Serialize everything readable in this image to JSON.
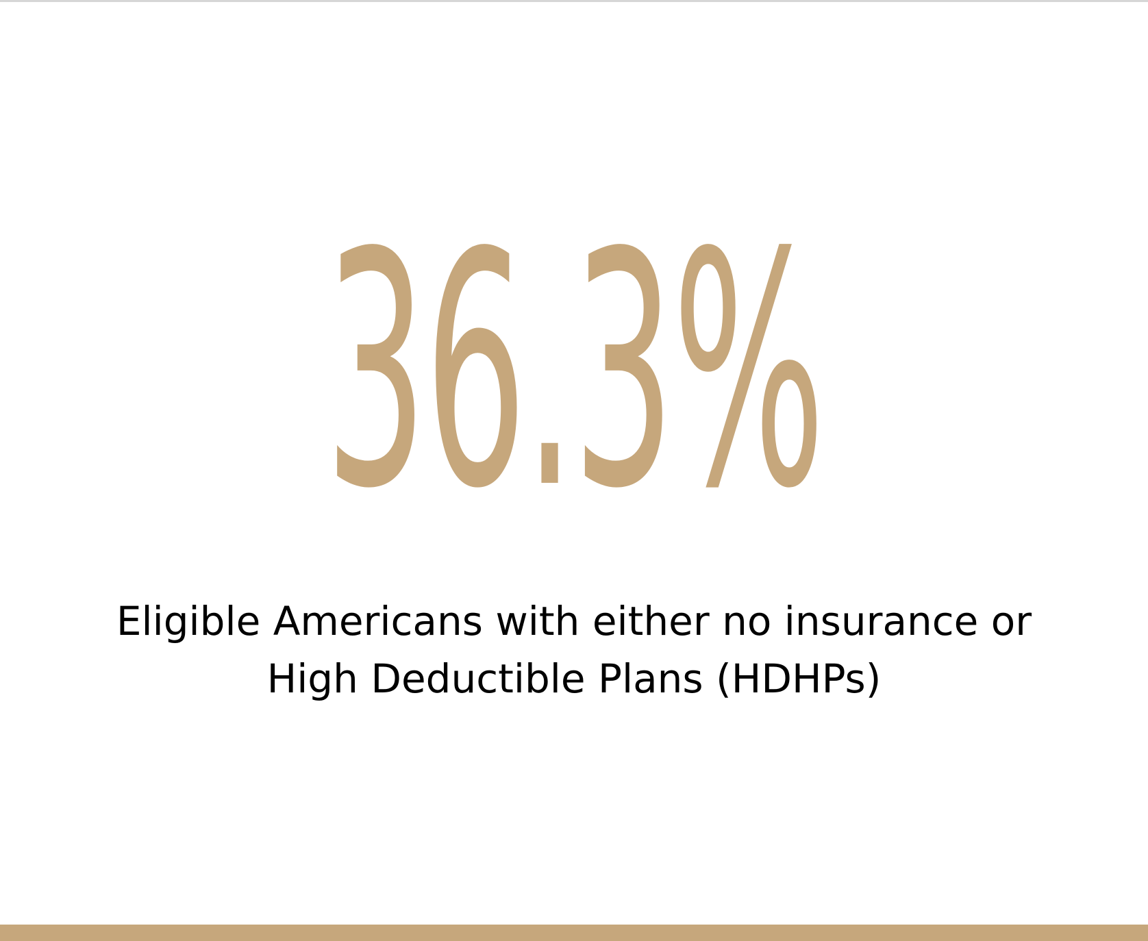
{
  "stat": {
    "value": "36.3%",
    "caption": "Eligible Americans with either no insurance or High Deductible Plans (HDHPs)"
  },
  "colors": {
    "accent": "#c6a77c",
    "text": "#000000",
    "background": "#ffffff"
  }
}
